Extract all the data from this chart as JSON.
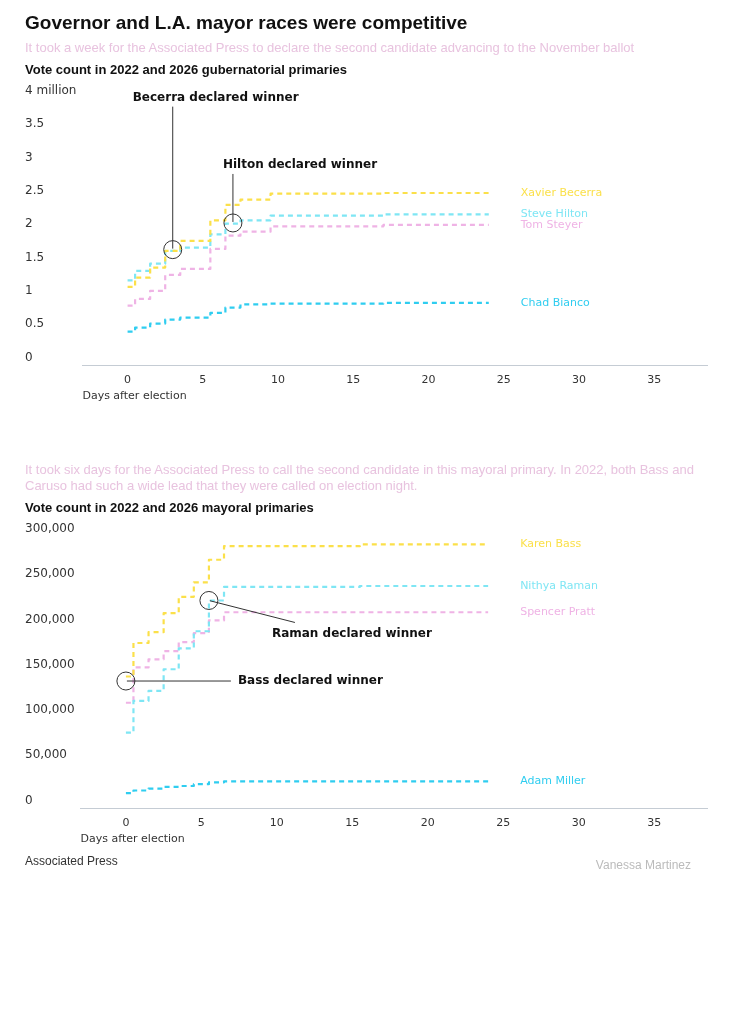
{
  "chart_data": [
    {
      "type": "step",
      "title": "Governor and L.A. mayor races were competitive",
      "subtitle": "It took a week for the Associated Press to declare the second candidate advancing to the November ballot",
      "ylabel": "Vote count in 2022 and 2026 gubernatorial primaries",
      "xlabel": "Days after election",
      "xlim": [
        -3,
        38.5
      ],
      "xticks": [
        0,
        5,
        10,
        15,
        20,
        25,
        30,
        35
      ],
      "ylim": [
        -0.12,
        4
      ],
      "yticks": [
        0,
        0.5,
        1,
        1.5,
        2,
        2.5,
        3,
        3.5,
        {
          "value": 4,
          "label": "4 million"
        }
      ],
      "grid": false,
      "legend": false,
      "line_style": "dashed",
      "marker": "none",
      "series": [
        {
          "name": "Xavier Becerra",
          "color": "#fbe04a",
          "x": [
            0,
            1,
            2,
            3,
            4,
            5,
            6,
            7,
            8,
            9,
            10,
            24
          ],
          "values": [
            1.06,
            1.2,
            1.35,
            1.6,
            1.75,
            1.75,
            2.06,
            2.29,
            2.37,
            2.37,
            2.46,
            2.47
          ]
        },
        {
          "name": "Steve Hilton",
          "color": "#7fe6f4",
          "x": [
            0,
            1,
            2,
            3,
            4,
            5,
            6,
            7,
            8,
            9,
            10,
            24
          ],
          "values": [
            1.16,
            1.3,
            1.41,
            1.6,
            1.65,
            1.65,
            1.85,
            2.01,
            2.06,
            2.06,
            2.13,
            2.15
          ]
        },
        {
          "name": "Tom Steyer",
          "color": "#efb3e5",
          "x": [
            0,
            1,
            2,
            3,
            4,
            5,
            6,
            7,
            8,
            9,
            10,
            24
          ],
          "values": [
            0.78,
            0.88,
            1.0,
            1.24,
            1.33,
            1.33,
            1.63,
            1.83,
            1.89,
            1.89,
            1.97,
            1.99
          ]
        },
        {
          "name": "Chad Bianco",
          "color": "#2fcdf0",
          "x": [
            0,
            1,
            2,
            3,
            4,
            5,
            6,
            7,
            8,
            9,
            10,
            24
          ],
          "values": [
            0.39,
            0.45,
            0.51,
            0.57,
            0.6,
            0.6,
            0.67,
            0.75,
            0.8,
            0.8,
            0.81,
            0.82
          ]
        }
      ],
      "annotations": [
        {
          "text": "Becerra declared winner",
          "x": 3,
          "y": 1.62
        },
        {
          "text": "Hilton declared winner",
          "x": 7,
          "y": 2.02
        }
      ]
    },
    {
      "type": "step",
      "subtitle": "It took six days for the Associated Press to call the second candidate in this mayoral primary. In 2022, both Bass and Caruso had such a wide lead that they were called on election night.",
      "ylabel": "Vote count in 2022 and 2026 mayoral primaries",
      "xlabel": "Days after election",
      "xlim": [
        -3,
        38.5
      ],
      "xticks": [
        0,
        5,
        10,
        15,
        20,
        25,
        30,
        35
      ],
      "ylim": [
        -9000,
        300000
      ],
      "yticks": [
        0,
        {
          "value": 50000,
          "label": "50,000"
        },
        {
          "value": 100000,
          "label": "100,000"
        },
        {
          "value": 150000,
          "label": "150,000"
        },
        {
          "value": 200000,
          "label": "200,000"
        },
        {
          "value": 250000,
          "label": "250,000"
        },
        {
          "value": 300000,
          "label": "300,000"
        }
      ],
      "grid": false,
      "legend": false,
      "line_style": "dashed",
      "marker": "none",
      "series": [
        {
          "name": "Karen Bass",
          "color": "#fbe04a",
          "x": [
            0,
            1,
            2,
            3,
            4,
            5,
            6,
            7,
            24
          ],
          "values": [
            137000,
            174000,
            186000,
            207000,
            225000,
            241000,
            266000,
            281000,
            283000
          ]
        },
        {
          "name": "Nithya Raman",
          "color": "#7fe6f4",
          "x": [
            0,
            1,
            2,
            3,
            4,
            5,
            6,
            7,
            24
          ],
          "values": [
            75000,
            110000,
            121000,
            145000,
            168000,
            187000,
            221000,
            236000,
            237000
          ]
        },
        {
          "name": "Spencer Pratt",
          "color": "#efb3e5",
          "x": [
            0,
            1,
            2,
            3,
            4,
            5,
            6,
            7,
            24
          ],
          "values": [
            108000,
            147000,
            156000,
            165000,
            175000,
            185000,
            199000,
            208000,
            208000
          ]
        },
        {
          "name": "Adam Miller",
          "color": "#2fcdf0",
          "x": [
            0,
            1,
            2,
            3,
            4,
            5,
            6,
            7,
            24
          ],
          "values": [
            8000,
            11000,
            13000,
            15000,
            16000,
            18000,
            20000,
            21000,
            21000
          ]
        }
      ],
      "annotations": [
        {
          "text": "Bass declared winner",
          "x": 0,
          "y": 132000
        },
        {
          "text": "Raman declared winner",
          "x": 5.5,
          "y": 221000
        },
        "Associated Press",
        "Vanessa Martinez"
      ]
    }
  ]
}
